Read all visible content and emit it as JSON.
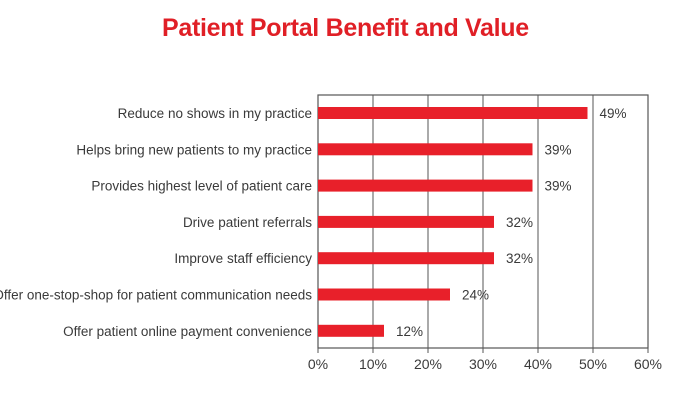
{
  "chart_data": {
    "type": "bar",
    "orientation": "horizontal",
    "title": "Patient Portal Benefit and Value",
    "xlabel": "",
    "ylabel": "",
    "categories": [
      "Reduce no shows in my practice",
      "Helps bring new patients to my practice",
      "Provides highest level of patient care",
      "Drive patient referrals",
      "Improve staff efficiency",
      "Offer one-stop-shop for patient communication needs",
      "Offer patient online payment convenience"
    ],
    "values": [
      49,
      39,
      39,
      32,
      32,
      24,
      12
    ],
    "value_labels": [
      "49%",
      "39%",
      "39%",
      "32%",
      "32%",
      "24%",
      "12%"
    ],
    "xlim": [
      0,
      60
    ],
    "xticks": [
      0,
      10,
      20,
      30,
      40,
      50,
      60
    ],
    "xtick_labels": [
      "0%",
      "10%",
      "20%",
      "30%",
      "40%",
      "50%",
      "60%"
    ],
    "grid": true,
    "colors": {
      "bar": "#e8202a",
      "title": "#e01f26",
      "text": "#3a3a3a",
      "grid": "#555555"
    }
  }
}
